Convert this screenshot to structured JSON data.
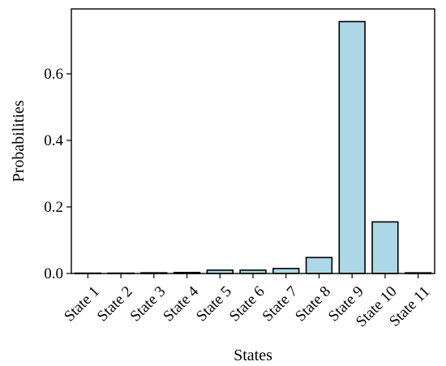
{
  "chart_data": {
    "type": "bar",
    "categories": [
      "State 1",
      "State 2",
      "State 3",
      "State 4",
      "State 5",
      "State 6",
      "State 7",
      "State 8",
      "State 9",
      "State 10",
      "State 11"
    ],
    "values": [
      0.001,
      0.001,
      0.002,
      0.003,
      0.01,
      0.01,
      0.015,
      0.048,
      0.757,
      0.155,
      0.002
    ],
    "xlabel": "States",
    "ylabel": "Probabilities",
    "ylim": [
      0,
      0.795
    ],
    "yticks": [
      0.0,
      0.2,
      0.4,
      0.6
    ],
    "ytick_labels": [
      "0.0",
      "0.2",
      "0.4",
      "0.6"
    ],
    "bar_color": "#add8e6",
    "edge_color": "#000000",
    "grid": false,
    "legend": false
  }
}
